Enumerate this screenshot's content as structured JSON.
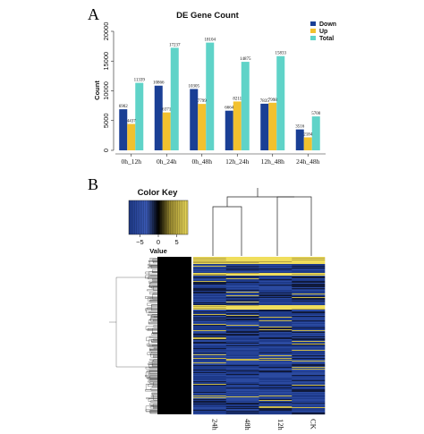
{
  "panels": {
    "a": "A",
    "b": "B"
  },
  "chart_data": [
    {
      "type": "bar",
      "title": "DE Gene Count",
      "xlabel": "",
      "ylabel": "Count",
      "ylim": [
        0,
        20000
      ],
      "yticks": [
        "0",
        "5000",
        "10000",
        "15000",
        "20000"
      ],
      "categories": [
        "0h_12h",
        "0h_24h",
        "0h_48h",
        "12h_24h",
        "12h_48h",
        "24h_48h"
      ],
      "series": [
        {
          "name": "Down",
          "color": "#1a3f95",
          "values": [
            6902,
            10866,
            10305,
            6664,
            7835,
            3516
          ]
        },
        {
          "name": "Up",
          "color": "#f2c12e",
          "values": [
            4437,
            6371,
            7799,
            8211,
            7998,
            2184
          ]
        },
        {
          "name": "Total",
          "color": "#5fd3c8",
          "values": [
            11339,
            17237,
            18104,
            14875,
            15833,
            5700
          ]
        }
      ],
      "value_labels": [
        [
          "6902",
          "4437",
          "11339"
        ],
        [
          "10866",
          "6371",
          "17237"
        ],
        [
          "10305",
          "7799",
          "18104"
        ],
        [
          "6664",
          "8211",
          "14875"
        ],
        [
          "7835",
          "7998",
          "15833"
        ],
        [
          "3516",
          "2184",
          "5700"
        ]
      ],
      "legend": "top-right",
      "grid": false
    },
    {
      "type": "heatmap",
      "color_key": {
        "title": "Color Key",
        "xlabel": "Value",
        "ticks": [
          "−5",
          "0",
          "5"
        ],
        "range": [
          -8,
          8
        ],
        "colors": [
          "#1e3a8a",
          "#3b5bb8",
          "#000000",
          "#9a8a30",
          "#f0de5c"
        ]
      },
      "columns": [
        "24h",
        "48h",
        "12h",
        "CK"
      ],
      "low_color": "#1e3a8a",
      "high_color": "#f0de5c",
      "mid_color": "#000000"
    }
  ]
}
